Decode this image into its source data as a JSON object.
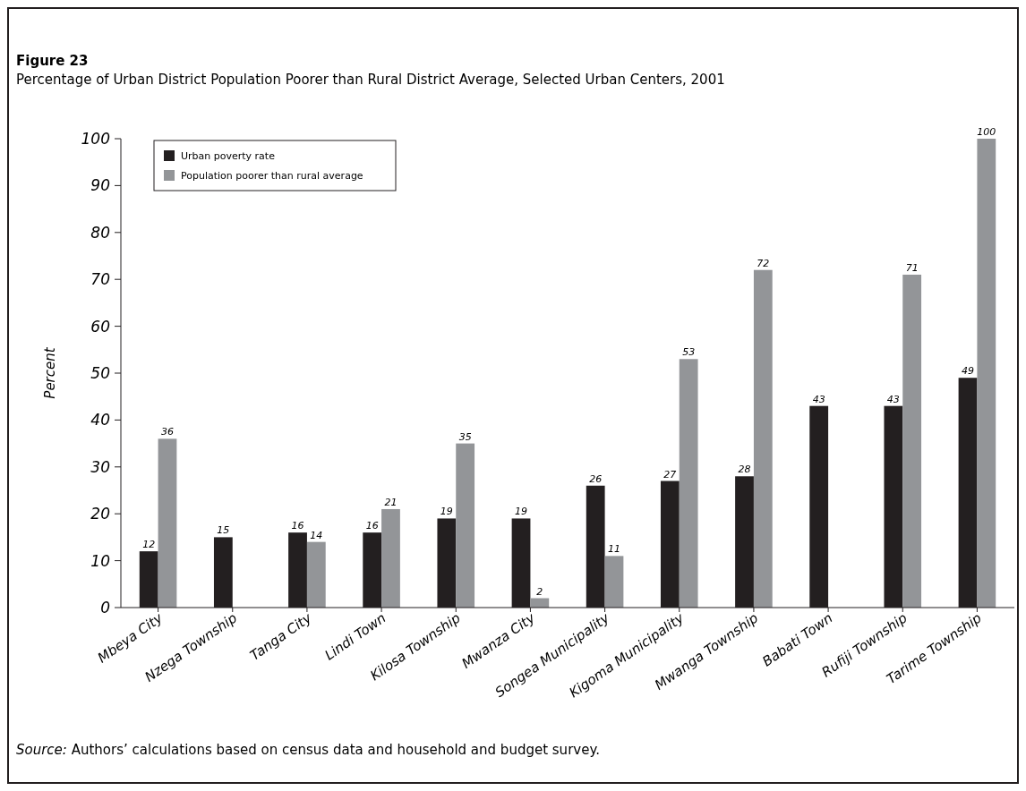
{
  "chart_data": {
    "type": "bar",
    "title": "Figure 23",
    "subtitle": "Percentage of Urban District Population Poorer than Rural District Average, Selected Urban Centers, 2001",
    "ylabel": "Percent",
    "categories": [
      "Mbeya City",
      "Nzega Township",
      "Tanga City",
      "Lindi Town",
      "Kilosa Township",
      "Mwanza City",
      "Songea Municipality",
      "Kigoma Municipality",
      "Mwanga Township",
      "Babati Town",
      "Rufiji Township",
      "Tarime Township"
    ],
    "series": [
      {
        "name": "Urban poverty rate",
        "color": "#231f20",
        "values": [
          12,
          15,
          16,
          16,
          19,
          19,
          26,
          27,
          28,
          43,
          43,
          49
        ]
      },
      {
        "name": "Population poorer than rural average",
        "color": "#939598",
        "values": [
          36,
          null,
          14,
          21,
          35,
          2,
          11,
          53,
          72,
          null,
          71,
          100
        ]
      }
    ],
    "ylim": [
      0,
      100
    ],
    "yticks": [
      0,
      10,
      20,
      30,
      40,
      50,
      60,
      70,
      80,
      90,
      100
    ],
    "data_labels": true,
    "legend": "top left",
    "grid": false,
    "annotations": [
      "Source: Authors’ calculations based on census data and household and budget survey."
    ]
  }
}
